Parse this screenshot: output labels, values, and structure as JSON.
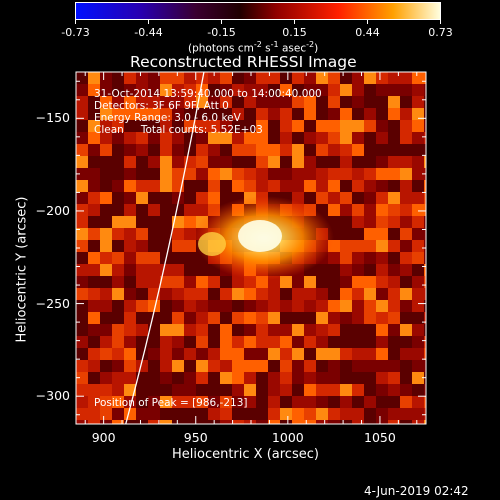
{
  "chart_data": {
    "type": "heatmap",
    "title": "Reconstructed RHESSI Image",
    "xlabel": "Heliocentric X (arcsec)",
    "ylabel": "Heliocentric Y (arcsec)",
    "xlim": [
      885,
      1075
    ],
    "ylim": [
      -315,
      -125
    ],
    "x_ticks": [
      900,
      950,
      1000,
      1050
    ],
    "y_ticks": [
      -150,
      -200,
      -250,
      -300
    ],
    "colorbar": {
      "min": -0.73,
      "max": 0.73,
      "ticks": [
        "-0.73",
        "-0.44",
        "-0.15",
        "0.15",
        "0.44",
        "0.73"
      ],
      "unit_text": "(photons cm",
      "unit_exp1": "-2",
      "unit_mid": " s",
      "unit_exp2": "-1",
      "unit_mid2": " asec",
      "unit_exp3": "-2",
      "unit_end": ")"
    },
    "annotations": {
      "time_range": "31-Oct-2014 13:59:40.000 to 14:00:40.000",
      "detectors": "Detectors: 3F 6F 9F, Att 0",
      "energy_range": "Energy Range: 3.0 - 6.0 keV",
      "method": "Clean",
      "total_counts": "Total counts: 5.52E+03",
      "peak": "Position of Peak = [986,-213]"
    },
    "peak_position": [
      986,
      -213
    ],
    "limb_color": "#ffffff"
  },
  "footer": {
    "date": "4-Jun-2019 02:42"
  }
}
